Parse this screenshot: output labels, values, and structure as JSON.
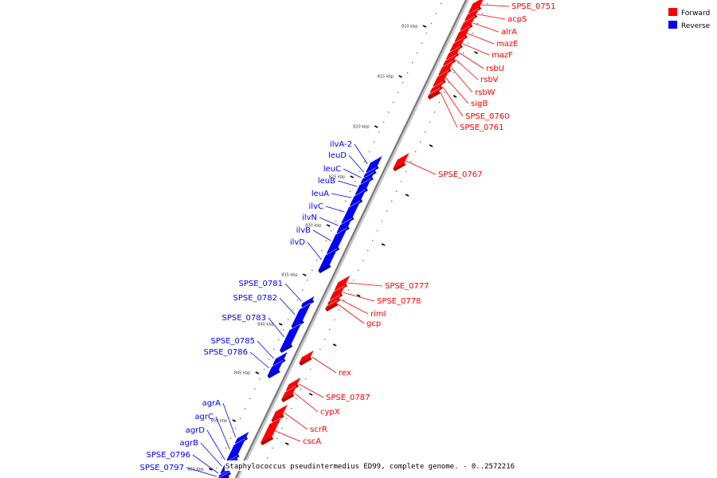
{
  "legend": {
    "forward_label": "Forward",
    "reverse_label": "Reverse",
    "forward_color": "#ff0000",
    "reverse_color": "#0000ff"
  },
  "caption": "Staphylococcus pseudintermedius ED99, complete genome. - 0..2572216",
  "ticks": [
    "810 kbp",
    "815 kbp",
    "820 kbp",
    "825 kbp",
    "830 kbp",
    "835 kbp",
    "840 kbp",
    "845 kbp",
    "850 kbp",
    "855 kbp"
  ],
  "forward_genes": [
    "SPSE_0751",
    "acpS",
    "alrA",
    "mazE",
    "mazF",
    "rsbU",
    "rsbV",
    "rsbW",
    "sigB",
    "SPSE_0760",
    "SPSE_0761",
    "SPSE_0767",
    "SPSE_0777",
    "SPSE_0778",
    "rimI",
    "gcp",
    "rex",
    "SPSE_0787",
    "cypX",
    "scrR",
    "cscA"
  ],
  "reverse_genes": [
    "ilvA-2",
    "leuD",
    "leuC",
    "leuB",
    "leuA",
    "ilvC",
    "ilvN",
    "ilvB",
    "ilvD",
    "SPSE_0781",
    "SPSE_0782",
    "SPSE_0783",
    "SPSE_0785",
    "SPSE_0786",
    "agrA",
    "agrC",
    "agrD",
    "agrB",
    "SPSE_0796",
    "SPSE_0797"
  ]
}
